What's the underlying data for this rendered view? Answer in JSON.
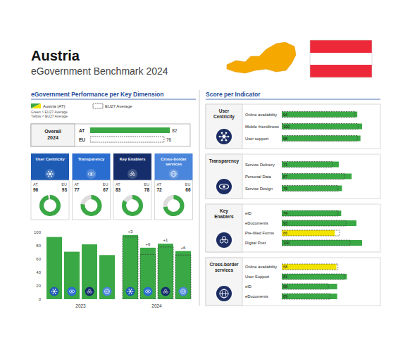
{
  "header": {
    "country": "Austria",
    "subtitle": "eGovernment Benchmark 2024"
  },
  "sections": {
    "left": "eGovernment Performance per Key Dimension",
    "right": "Score per Indicator"
  },
  "chart_data": [
    {
      "type": "bar",
      "orientation": "horizontal",
      "title": "Overall 2024",
      "categories": [
        "AT",
        "EU"
      ],
      "series": [
        {
          "name": "Austria (AT)",
          "color": "#3aa845",
          "values": [
            82,
            null
          ]
        },
        {
          "name": "EU27 Average",
          "color": "#ffffff",
          "line_style": "dashed",
          "values": [
            null,
            76
          ]
        }
      ],
      "xlim": [
        0,
        100
      ],
      "tick_labels": "y",
      "data_labels": true,
      "legend": "top",
      "annotations": [
        "Green > EU27 Average",
        "Yellow < EU27 Average"
      ]
    },
    {
      "type": "donut",
      "categories": [
        "User Centricity",
        "Transparency",
        "Key Enablers",
        "Cross-border services"
      ],
      "series": [
        {
          "name": "AT",
          "color": "#3aa845",
          "values": [
            96,
            77,
            83,
            72
          ]
        },
        {
          "name": "EU",
          "values": [
            93,
            67,
            78,
            66
          ]
        }
      ],
      "ylim": [
        0,
        100
      ],
      "data_labels": true
    },
    {
      "type": "bar",
      "categories": [
        null,
        null,
        null,
        null
      ],
      "series": [
        {
          "name": "2023",
          "color": "#3aa845",
          "values": [
            93,
            71,
            82,
            66
          ]
        },
        {
          "name": "2024",
          "color": "#3aa845",
          "values": [
            96,
            77,
            83,
            72
          ]
        },
        {
          "line_style": "dashed",
          "values": [
            93,
            67,
            78,
            66
          ]
        }
      ],
      "ylim": [
        0,
        100
      ],
      "yticks": [
        0,
        20,
        40,
        60,
        80,
        100
      ],
      "grid": false,
      "annotations": [
        "+3",
        "+6",
        "+1",
        "+6"
      ]
    },
    {
      "type": "bar",
      "orientation": "horizontal",
      "title": "User Centricity",
      "categories": [
        "Online availability",
        "Mobile friendliness",
        "User support"
      ],
      "values": [
        94,
        100,
        98
      ],
      "colors": [
        "#3aa845",
        "#3aa845",
        "#3aa845"
      ],
      "eu_average": [
        91,
        95,
        94
      ],
      "xlim": [
        0,
        100
      ],
      "tick_labels": "y",
      "data_labels": true
    },
    {
      "type": "bar",
      "orientation": "horizontal",
      "title": "Transparency",
      "categories": [
        "Service Delivery",
        "Personal Data",
        "Service Design"
      ],
      "values": [
        71,
        87,
        75
      ],
      "colors": [
        "#3aa845",
        "#3aa845",
        "#3aa845"
      ],
      "eu_average": [
        63,
        78,
        70
      ],
      "xlim": [
        0,
        100
      ],
      "tick_labels": "y",
      "data_labels": true
    },
    {
      "type": "bar",
      "orientation": "horizontal",
      "title": "Key Enablers",
      "categories": [
        "eID",
        "eDocuments",
        "Pre-filled Forms",
        "Digital Post"
      ],
      "values": [
        74,
        93,
        66,
        100
      ],
      "colors": [
        "#3aa845",
        "#3aa845",
        "#f2e300",
        "#3aa845"
      ],
      "eu_average": [
        70,
        80,
        72,
        85
      ],
      "xlim": [
        0,
        100
      ],
      "tick_labels": "y",
      "data_labels": true
    },
    {
      "type": "bar",
      "orientation": "horizontal",
      "title": "Cross-border services",
      "categories": [
        "Online availability",
        "User Support",
        "eID",
        "eDocuments"
      ],
      "values": [
        68,
        81,
        69,
        69
      ],
      "colors": [
        "#f2e300",
        "#3aa845",
        "#3aa845",
        "#3aa845"
      ],
      "eu_average": [
        70,
        78,
        58,
        60
      ],
      "xlim": [
        0,
        100
      ],
      "tick_labels": "y",
      "data_labels": true
    }
  ]
}
